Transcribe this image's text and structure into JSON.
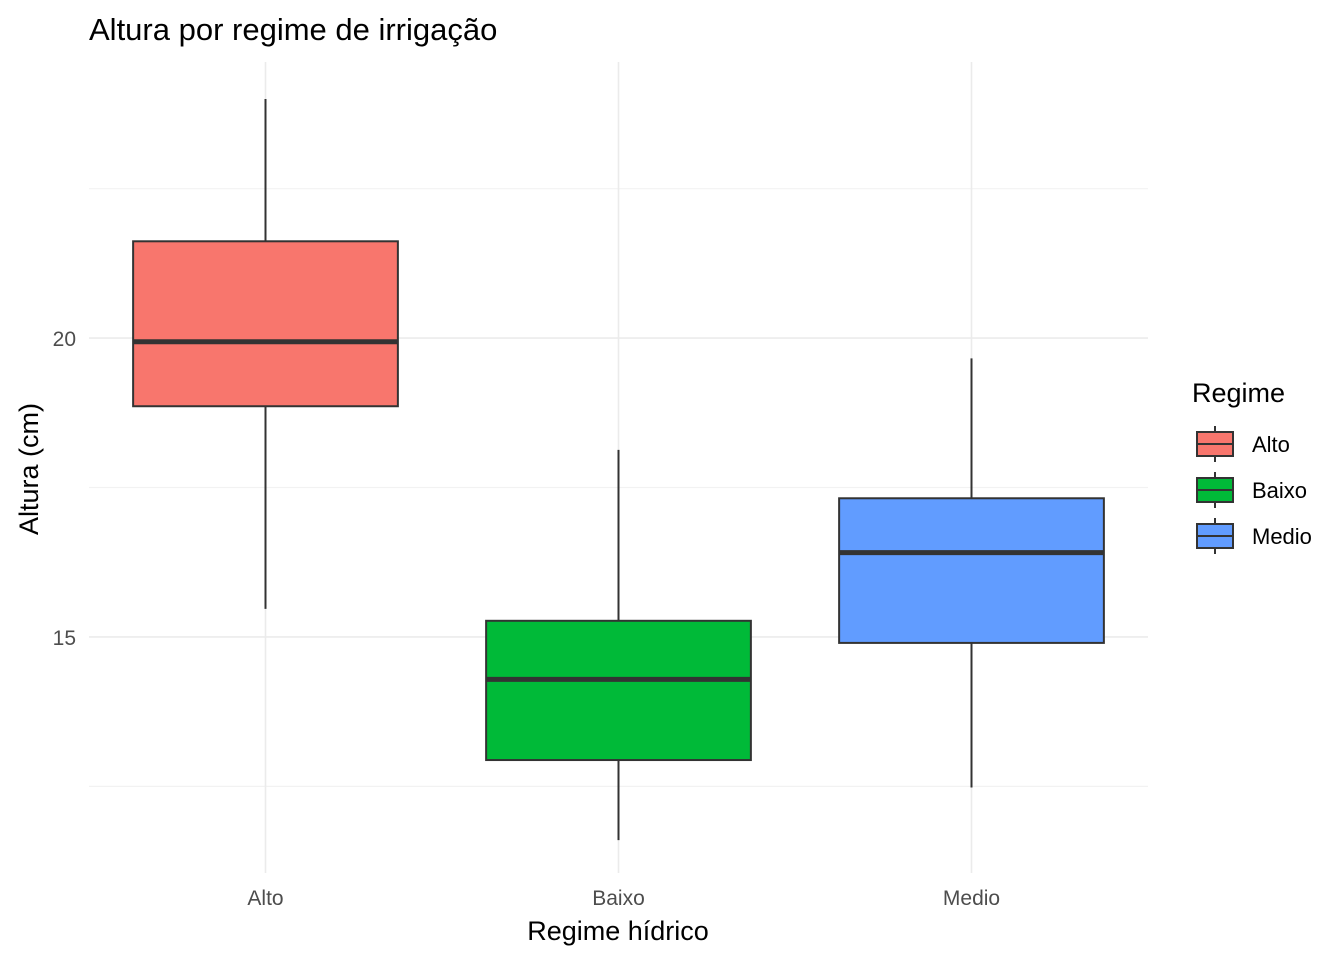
{
  "chart_data": {
    "type": "boxplot",
    "title": "Altura por regime de irrigação",
    "xlabel": "Regime hídrico",
    "ylabel": "Altura (cm)",
    "categories": [
      "Alto",
      "Baixo",
      "Medio"
    ],
    "boxes": [
      {
        "category": "Alto",
        "whisker_low": 15.47,
        "q1": 18.86,
        "median": 19.94,
        "q3": 21.62,
        "whisker_high": 24.0,
        "fill": "#F8766D"
      },
      {
        "category": "Baixo",
        "whisker_low": 11.6,
        "q1": 12.94,
        "median": 14.29,
        "q3": 15.27,
        "whisker_high": 18.13,
        "fill": "#00BA38"
      },
      {
        "category": "Medio",
        "whisker_low": 12.48,
        "q1": 14.9,
        "median": 16.41,
        "q3": 17.32,
        "whisker_high": 19.66,
        "fill": "#619CFF"
      }
    ],
    "ylim": [
      11.05,
      24.62
    ],
    "yticks": [
      15,
      20
    ],
    "yticks_minor": [
      12.5,
      17.5,
      22.5
    ],
    "grid": true,
    "legend": {
      "title": "Regime",
      "position": "right",
      "entries": [
        "Alto",
        "Baixo",
        "Medio"
      ]
    },
    "colors": {
      "Alto": "#F8766D",
      "Baixo": "#00BA38",
      "Medio": "#619CFF",
      "outline": "#333333"
    }
  }
}
